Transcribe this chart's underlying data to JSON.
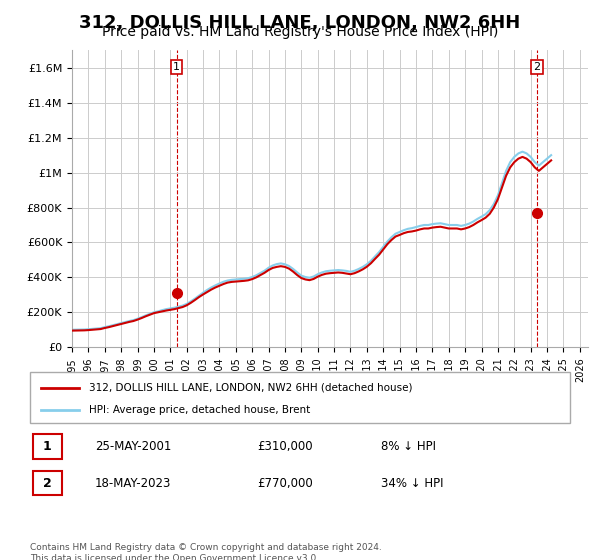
{
  "title": "312, DOLLIS HILL LANE, LONDON, NW2 6HH",
  "subtitle": "Price paid vs. HM Land Registry's House Price Index (HPI)",
  "title_fontsize": 13,
  "subtitle_fontsize": 10,
  "background_color": "#ffffff",
  "plot_bg_color": "#ffffff",
  "grid_color": "#cccccc",
  "ylabel_color": "#333333",
  "xlabel_color": "#333333",
  "ylim": [
    0,
    1700000
  ],
  "xlim_start": 1995.0,
  "xlim_end": 2026.5,
  "yticks": [
    0,
    200000,
    400000,
    600000,
    800000,
    1000000,
    1200000,
    1400000,
    1600000
  ],
  "ytick_labels": [
    "£0",
    "£200K",
    "£400K",
    "£600K",
    "£800K",
    "£1M",
    "£1.2M",
    "£1.4M",
    "£1.6M"
  ],
  "xticks": [
    1995,
    1996,
    1997,
    1998,
    1999,
    2000,
    2001,
    2002,
    2003,
    2004,
    2005,
    2006,
    2007,
    2008,
    2009,
    2010,
    2011,
    2012,
    2013,
    2014,
    2015,
    2016,
    2017,
    2018,
    2019,
    2020,
    2021,
    2022,
    2023,
    2024,
    2025,
    2026
  ],
  "hpi_color": "#87CEEB",
  "price_color": "#cc0000",
  "sale_dot_color": "#cc0000",
  "sale1": {
    "year": 2001.38,
    "price": 310000,
    "label": "1",
    "date": "25-MAY-2001",
    "pct": "8%"
  },
  "sale2": {
    "year": 2023.38,
    "price": 770000,
    "label": "2",
    "date": "18-MAY-2023",
    "pct": "34%"
  },
  "dashed_line_color": "#cc0000",
  "legend_label_red": "312, DOLLIS HILL LANE, LONDON, NW2 6HH (detached house)",
  "legend_label_blue": "HPI: Average price, detached house, Brent",
  "footer": "Contains HM Land Registry data © Crown copyright and database right 2024.\nThis data is licensed under the Open Government Licence v3.0.",
  "hpi_data_x": [
    1995.0,
    1995.25,
    1995.5,
    1995.75,
    1996.0,
    1996.25,
    1996.5,
    1996.75,
    1997.0,
    1997.25,
    1997.5,
    1997.75,
    1998.0,
    1998.25,
    1998.5,
    1998.75,
    1999.0,
    1999.25,
    1999.5,
    1999.75,
    2000.0,
    2000.25,
    2000.5,
    2000.75,
    2001.0,
    2001.25,
    2001.5,
    2001.75,
    2002.0,
    2002.25,
    2002.5,
    2002.75,
    2003.0,
    2003.25,
    2003.5,
    2003.75,
    2004.0,
    2004.25,
    2004.5,
    2004.75,
    2005.0,
    2005.25,
    2005.5,
    2005.75,
    2006.0,
    2006.25,
    2006.5,
    2006.75,
    2007.0,
    2007.25,
    2007.5,
    2007.75,
    2008.0,
    2008.25,
    2008.5,
    2008.75,
    2009.0,
    2009.25,
    2009.5,
    2009.75,
    2010.0,
    2010.25,
    2010.5,
    2010.75,
    2011.0,
    2011.25,
    2011.5,
    2011.75,
    2012.0,
    2012.25,
    2012.5,
    2012.75,
    2013.0,
    2013.25,
    2013.5,
    2013.75,
    2014.0,
    2014.25,
    2014.5,
    2014.75,
    2015.0,
    2015.25,
    2015.5,
    2015.75,
    2016.0,
    2016.25,
    2016.5,
    2016.75,
    2017.0,
    2017.25,
    2017.5,
    2017.75,
    2018.0,
    2018.25,
    2018.5,
    2018.75,
    2019.0,
    2019.25,
    2019.5,
    2019.75,
    2020.0,
    2020.25,
    2020.5,
    2020.75,
    2021.0,
    2021.25,
    2021.5,
    2021.75,
    2022.0,
    2022.25,
    2022.5,
    2022.75,
    2023.0,
    2023.25,
    2023.5,
    2023.75,
    2024.0,
    2024.25
  ],
  "hpi_data_y": [
    100000,
    100500,
    101000,
    101500,
    103000,
    105000,
    107000,
    109000,
    115000,
    120000,
    126000,
    132000,
    138000,
    144000,
    150000,
    155000,
    163000,
    172000,
    182000,
    191000,
    200000,
    205000,
    212000,
    218000,
    222000,
    226000,
    232000,
    238000,
    248000,
    262000,
    278000,
    295000,
    312000,
    328000,
    342000,
    354000,
    365000,
    375000,
    382000,
    386000,
    388000,
    390000,
    392000,
    395000,
    402000,
    412000,
    425000,
    438000,
    455000,
    468000,
    476000,
    480000,
    475000,
    465000,
    448000,
    428000,
    410000,
    402000,
    398000,
    405000,
    418000,
    428000,
    435000,
    438000,
    440000,
    442000,
    440000,
    437000,
    432000,
    438000,
    448000,
    460000,
    475000,
    495000,
    520000,
    545000,
    575000,
    605000,
    630000,
    650000,
    660000,
    670000,
    678000,
    682000,
    688000,
    695000,
    700000,
    700000,
    705000,
    708000,
    710000,
    705000,
    700000,
    700000,
    700000,
    695000,
    700000,
    708000,
    720000,
    735000,
    748000,
    762000,
    785000,
    820000,
    870000,
    940000,
    1010000,
    1060000,
    1090000,
    1110000,
    1120000,
    1110000,
    1090000,
    1060000,
    1040000,
    1060000,
    1080000,
    1100000
  ],
  "price_data_x": [
    1995.0,
    1995.25,
    1995.5,
    1995.75,
    1996.0,
    1996.25,
    1996.5,
    1996.75,
    1997.0,
    1997.25,
    1997.5,
    1997.75,
    1998.0,
    1998.25,
    1998.5,
    1998.75,
    1999.0,
    1999.25,
    1999.5,
    1999.75,
    2000.0,
    2000.25,
    2000.5,
    2000.75,
    2001.0,
    2001.25,
    2001.5,
    2001.75,
    2002.0,
    2002.25,
    2002.5,
    2002.75,
    2003.0,
    2003.25,
    2003.5,
    2003.75,
    2004.0,
    2004.25,
    2004.5,
    2004.75,
    2005.0,
    2005.25,
    2005.5,
    2005.75,
    2006.0,
    2006.25,
    2006.5,
    2006.75,
    2007.0,
    2007.25,
    2007.5,
    2007.75,
    2008.0,
    2008.25,
    2008.5,
    2008.75,
    2009.0,
    2009.25,
    2009.5,
    2009.75,
    2010.0,
    2010.25,
    2010.5,
    2010.75,
    2011.0,
    2011.25,
    2011.5,
    2011.75,
    2012.0,
    2012.25,
    2012.5,
    2012.75,
    2013.0,
    2013.25,
    2013.5,
    2013.75,
    2014.0,
    2014.25,
    2014.5,
    2014.75,
    2015.0,
    2015.25,
    2015.5,
    2015.75,
    2016.0,
    2016.25,
    2016.5,
    2016.75,
    2017.0,
    2017.25,
    2017.5,
    2017.75,
    2018.0,
    2018.25,
    2018.5,
    2018.75,
    2019.0,
    2019.25,
    2019.5,
    2019.75,
    2020.0,
    2020.25,
    2020.5,
    2020.75,
    2021.0,
    2021.25,
    2021.5,
    2021.75,
    2022.0,
    2022.25,
    2022.5,
    2022.75,
    2023.0,
    2023.25,
    2023.5,
    2023.75,
    2024.0,
    2024.25
  ],
  "price_data_y": [
    95000,
    95500,
    96000,
    96500,
    98000,
    100000,
    102000,
    104000,
    110000,
    115000,
    121000,
    127000,
    133000,
    139000,
    145000,
    150000,
    158000,
    167000,
    177000,
    186000,
    195000,
    200000,
    205000,
    210000,
    214000,
    218000,
    224000,
    230000,
    240000,
    254000,
    270000,
    287000,
    302000,
    316000,
    330000,
    342000,
    352000,
    362000,
    370000,
    374000,
    376000,
    378000,
    380000,
    383000,
    390000,
    400000,
    413000,
    426000,
    442000,
    454000,
    460000,
    464000,
    460000,
    450000,
    433000,
    413000,
    396000,
    388000,
    384000,
    391000,
    404000,
    414000,
    421000,
    424000,
    426000,
    428000,
    426000,
    422000,
    418000,
    424000,
    434000,
    446000,
    461000,
    481000,
    506000,
    530000,
    560000,
    590000,
    614000,
    634000,
    643000,
    653000,
    660000,
    663000,
    668000,
    675000,
    680000,
    680000,
    685000,
    688000,
    690000,
    685000,
    680000,
    680000,
    680000,
    675000,
    680000,
    688000,
    700000,
    715000,
    728000,
    742000,
    764000,
    800000,
    848000,
    915000,
    982000,
    1030000,
    1060000,
    1080000,
    1090000,
    1080000,
    1060000,
    1030000,
    1010000,
    1030000,
    1050000,
    1070000
  ]
}
